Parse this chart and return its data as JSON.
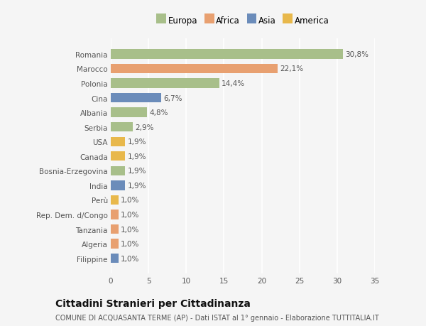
{
  "categories": [
    "Filippine",
    "Algeria",
    "Tanzania",
    "Rep. Dem. d/Congo",
    "Perù",
    "India",
    "Bosnia-Erzegovina",
    "Canada",
    "USA",
    "Serbia",
    "Albania",
    "Cina",
    "Polonia",
    "Marocco",
    "Romania"
  ],
  "values": [
    1.0,
    1.0,
    1.0,
    1.0,
    1.0,
    1.9,
    1.9,
    1.9,
    1.9,
    2.9,
    4.8,
    6.7,
    14.4,
    22.1,
    30.8
  ],
  "labels": [
    "1,0%",
    "1,0%",
    "1,0%",
    "1,0%",
    "1,0%",
    "1,9%",
    "1,9%",
    "1,9%",
    "1,9%",
    "2,9%",
    "4,8%",
    "6,7%",
    "14,4%",
    "22,1%",
    "30,8%"
  ],
  "colors": [
    "#6b8cba",
    "#e8a070",
    "#e8a070",
    "#e8a070",
    "#e8b84b",
    "#6b8cba",
    "#a8bf8a",
    "#e8b84b",
    "#e8b84b",
    "#a8bf8a",
    "#a8bf8a",
    "#6b8cba",
    "#a8bf8a",
    "#e8a070",
    "#a8bf8a"
  ],
  "legend_labels": [
    "Europa",
    "Africa",
    "Asia",
    "America"
  ],
  "legend_colors": [
    "#a8bf8a",
    "#e8a070",
    "#6b8cba",
    "#e8b84b"
  ],
  "title": "Cittadini Stranieri per Cittadinanza",
  "subtitle": "COMUNE DI ACQUASANTA TERME (AP) - Dati ISTAT al 1° gennaio - Elaborazione TUTTITALIA.IT",
  "xlim": [
    0,
    35
  ],
  "xticks": [
    0,
    5,
    10,
    15,
    20,
    25,
    30,
    35
  ],
  "bg_color": "#f5f5f5",
  "grid_color": "#ffffff",
  "bar_height": 0.65,
  "label_fontsize": 7.5,
  "title_fontsize": 10,
  "subtitle_fontsize": 7,
  "tick_fontsize": 7.5,
  "legend_fontsize": 8.5
}
